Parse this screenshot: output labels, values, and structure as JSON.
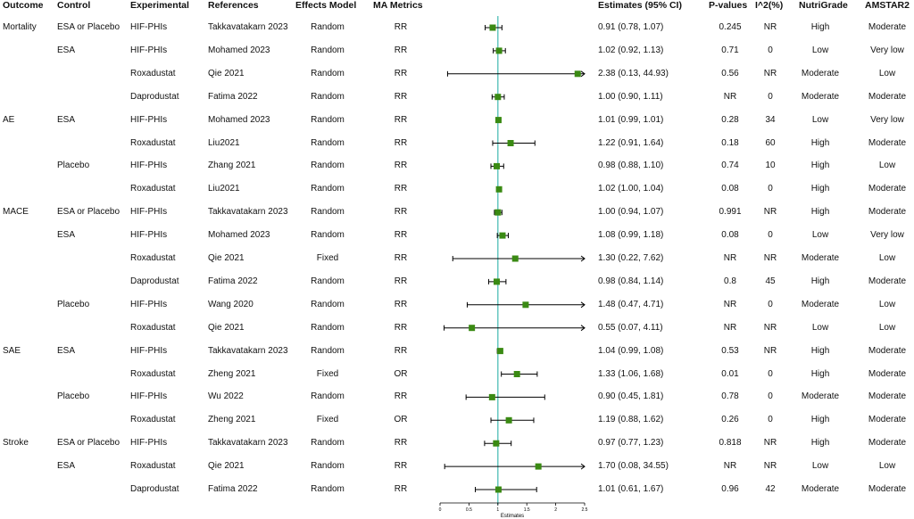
{
  "headers": {
    "outcome": "Outcome",
    "control": "Control",
    "experimental": "Experimental",
    "references": "References",
    "effects_model": "Effects Model",
    "ma_metrics": "MA Metrics",
    "estimates": "Estimates (95% CI)",
    "p_values": "P-values",
    "i2": "I^2(%)",
    "nutrigrade": "NutriGrade",
    "amstar2": "AMSTAR2"
  },
  "colors": {
    "point": "#3a8a13",
    "ref_line": "#4fbfb7",
    "whisker": "#000000"
  },
  "chart_data": {
    "type": "forest",
    "xlabel": "Estimates",
    "xlim": [
      0,
      2.5
    ],
    "xticks": [
      "0",
      "0.5",
      "1",
      "1.5",
      "2",
      "2.5"
    ],
    "reference_line": 1,
    "rows": [
      {
        "outcome": "Mortality",
        "control": "ESA or Placebo",
        "experimental": "HIF-PHIs",
        "reference": "Takkavatakarn 2023",
        "model": "Random",
        "metric": "RR",
        "est": 0.91,
        "lo": 0.78,
        "hi": 1.07,
        "ci": "0.91 (0.78, 1.07)",
        "p": "0.245",
        "i2": "NR",
        "nutri": "High",
        "amstar": "Moderate"
      },
      {
        "outcome": "",
        "control": "ESA",
        "experimental": "HIF-PHIs",
        "reference": "Mohamed 2023",
        "model": "Random",
        "metric": "RR",
        "est": 1.02,
        "lo": 0.92,
        "hi": 1.13,
        "ci": "1.02 (0.92, 1.13)",
        "p": "0.71",
        "i2": "0",
        "nutri": "Low",
        "amstar": "Very low"
      },
      {
        "outcome": "",
        "control": "",
        "experimental": "Roxadustat",
        "reference": "Qie 2021",
        "model": "Random",
        "metric": "RR",
        "est": 2.38,
        "lo": 0.13,
        "hi": 44.93,
        "ci": "2.38 (0.13, 44.93)",
        "p": "0.56",
        "i2": "NR",
        "nutri": "Moderate",
        "amstar": "Low"
      },
      {
        "outcome": "",
        "control": "",
        "experimental": "Daprodustat",
        "reference": "Fatima 2022",
        "model": "Random",
        "metric": "RR",
        "est": 1.0,
        "lo": 0.9,
        "hi": 1.11,
        "ci": "1.00 (0.90, 1.11)",
        "p": "NR",
        "i2": "0",
        "nutri": "Moderate",
        "amstar": "Moderate"
      },
      {
        "outcome": "AE",
        "control": "ESA",
        "experimental": "HIF-PHIs",
        "reference": "Mohamed 2023",
        "model": "Random",
        "metric": "RR",
        "est": 1.01,
        "lo": 0.99,
        "hi": 1.01,
        "ci": "1.01 (0.99, 1.01)",
        "p": "0.28",
        "i2": "34",
        "nutri": "Low",
        "amstar": "Very low"
      },
      {
        "outcome": "",
        "control": "",
        "experimental": "Roxadustat",
        "reference": "Liu2021",
        "model": "Random",
        "metric": "RR",
        "est": 1.22,
        "lo": 0.91,
        "hi": 1.64,
        "ci": "1.22 (0.91, 1.64)",
        "p": "0.18",
        "i2": "60",
        "nutri": "High",
        "amstar": "Moderate"
      },
      {
        "outcome": "",
        "control": "Placebo",
        "experimental": "HIF-PHIs",
        "reference": "Zhang 2021",
        "model": "Random",
        "metric": "RR",
        "est": 0.98,
        "lo": 0.88,
        "hi": 1.1,
        "ci": "0.98 (0.88, 1.10)",
        "p": "0.74",
        "i2": "10",
        "nutri": "High",
        "amstar": "Low"
      },
      {
        "outcome": "",
        "control": "",
        "experimental": "Roxadustat",
        "reference": "Liu2021",
        "model": "Random",
        "metric": "RR",
        "est": 1.02,
        "lo": 1.0,
        "hi": 1.04,
        "ci": "1.02 (1.00, 1.04)",
        "p": "0.08",
        "i2": "0",
        "nutri": "High",
        "amstar": "Moderate"
      },
      {
        "outcome": "MACE",
        "control": "ESA or Placebo",
        "experimental": "HIF-PHIs",
        "reference": "Takkavatakarn 2023",
        "model": "Random",
        "metric": "RR",
        "est": 1.0,
        "lo": 0.94,
        "hi": 1.07,
        "ci": "1.00 (0.94, 1.07)",
        "p": "0.991",
        "i2": "NR",
        "nutri": "High",
        "amstar": "Moderate"
      },
      {
        "outcome": "",
        "control": "ESA",
        "experimental": "HIF-PHIs",
        "reference": "Mohamed 2023",
        "model": "Random",
        "metric": "RR",
        "est": 1.08,
        "lo": 0.99,
        "hi": 1.18,
        "ci": "1.08 (0.99, 1.18)",
        "p": "0.08",
        "i2": "0",
        "nutri": "Low",
        "amstar": "Very low"
      },
      {
        "outcome": "",
        "control": "",
        "experimental": "Roxadustat",
        "reference": "Qie 2021",
        "model": "Fixed",
        "metric": "RR",
        "est": 1.3,
        "lo": 0.22,
        "hi": 7.62,
        "ci": "1.30 (0.22, 7.62)",
        "p": "NR",
        "i2": "NR",
        "nutri": "Moderate",
        "amstar": "Low"
      },
      {
        "outcome": "",
        "control": "",
        "experimental": "Daprodustat",
        "reference": "Fatima 2022",
        "model": "Random",
        "metric": "RR",
        "est": 0.98,
        "lo": 0.84,
        "hi": 1.14,
        "ci": "0.98 (0.84, 1.14)",
        "p": "0.8",
        "i2": "45",
        "nutri": "High",
        "amstar": "Moderate"
      },
      {
        "outcome": "",
        "control": "Placebo",
        "experimental": "HIF-PHIs",
        "reference": "Wang 2020",
        "model": "Random",
        "metric": "RR",
        "est": 1.48,
        "lo": 0.47,
        "hi": 4.71,
        "ci": "1.48 (0.47, 4.71)",
        "p": "NR",
        "i2": "0",
        "nutri": "Moderate",
        "amstar": "Low"
      },
      {
        "outcome": "",
        "control": "",
        "experimental": "Roxadustat",
        "reference": "Qie 2021",
        "model": "Random",
        "metric": "RR",
        "est": 0.55,
        "lo": 0.07,
        "hi": 4.11,
        "ci": "0.55 (0.07, 4.11)",
        "p": "NR",
        "i2": "NR",
        "nutri": "Low",
        "amstar": "Low"
      },
      {
        "outcome": "SAE",
        "control": "ESA",
        "experimental": "HIF-PHIs",
        "reference": "Takkavatakarn 2023",
        "model": "Random",
        "metric": "RR",
        "est": 1.04,
        "lo": 0.99,
        "hi": 1.08,
        "ci": "1.04 (0.99, 1.08)",
        "p": "0.53",
        "i2": "NR",
        "nutri": "High",
        "amstar": "Moderate"
      },
      {
        "outcome": "",
        "control": "",
        "experimental": "Roxadustat",
        "reference": "Zheng 2021",
        "model": "Fixed",
        "metric": "OR",
        "est": 1.33,
        "lo": 1.06,
        "hi": 1.68,
        "ci": "1.33 (1.06, 1.68)",
        "p": "0.01",
        "i2": "0",
        "nutri": "High",
        "amstar": "Moderate"
      },
      {
        "outcome": "",
        "control": "Placebo",
        "experimental": "HIF-PHIs",
        "reference": "Wu 2022",
        "model": "Random",
        "metric": "RR",
        "est": 0.9,
        "lo": 0.45,
        "hi": 1.81,
        "ci": "0.90 (0.45, 1.81)",
        "p": "0.78",
        "i2": "0",
        "nutri": "Moderate",
        "amstar": "Moderate"
      },
      {
        "outcome": "",
        "control": "",
        "experimental": "Roxadustat",
        "reference": "Zheng 2021",
        "model": "Fixed",
        "metric": "OR",
        "est": 1.19,
        "lo": 0.88,
        "hi": 1.62,
        "ci": "1.19 (0.88, 1.62)",
        "p": "0.26",
        "i2": "0",
        "nutri": "High",
        "amstar": "Moderate"
      },
      {
        "outcome": "Stroke",
        "control": "ESA or Placebo",
        "experimental": "HIF-PHIs",
        "reference": "Takkavatakarn 2023",
        "model": "Random",
        "metric": "RR",
        "est": 0.97,
        "lo": 0.77,
        "hi": 1.23,
        "ci": "0.97 (0.77, 1.23)",
        "p": "0.818",
        "i2": "NR",
        "nutri": "High",
        "amstar": "Moderate"
      },
      {
        "outcome": "",
        "control": "ESA",
        "experimental": "Roxadustat",
        "reference": "Qie 2021",
        "model": "Random",
        "metric": "RR",
        "est": 1.7,
        "lo": 0.08,
        "hi": 34.55,
        "ci": "1.70 (0.08, 34.55)",
        "p": "NR",
        "i2": "NR",
        "nutri": "Low",
        "amstar": "Low"
      },
      {
        "outcome": "",
        "control": "",
        "experimental": "Daprodustat",
        "reference": "Fatima 2022",
        "model": "Random",
        "metric": "RR",
        "est": 1.01,
        "lo": 0.61,
        "hi": 1.67,
        "ci": "1.01 (0.61, 1.67)",
        "p": "0.96",
        "i2": "42",
        "nutri": "Moderate",
        "amstar": "Moderate"
      }
    ]
  }
}
